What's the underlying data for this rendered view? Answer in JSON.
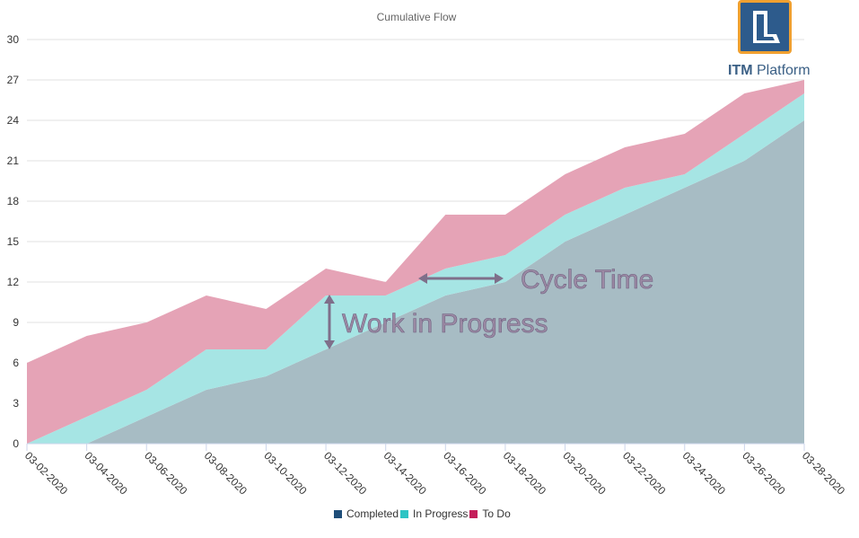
{
  "chart_data": {
    "type": "area",
    "title": "Cumulative Flow",
    "stacked": true,
    "x": [
      "03-02-2020",
      "03-04-2020",
      "03-06-2020",
      "03-08-2020",
      "03-10-2020",
      "03-12-2020",
      "03-14-2020",
      "03-16-2020",
      "03-18-2020",
      "03-20-2020",
      "03-22-2020",
      "03-24-2020",
      "03-26-2020",
      "03-28-2020"
    ],
    "ylim": [
      0,
      30
    ],
    "yticks": [
      0,
      3,
      6,
      9,
      12,
      15,
      18,
      21,
      24,
      27,
      30
    ],
    "grid": true,
    "legend_position": "bottom",
    "series": [
      {
        "name": "Completed",
        "legend_color": "#1f4e79",
        "fill": "#a7bcc4",
        "values": [
          0,
          0,
          2,
          4,
          5,
          7,
          9,
          11,
          12,
          15,
          17,
          19,
          21,
          24
        ]
      },
      {
        "name": "In Progress",
        "legend_color": "#2ec4c4",
        "fill": "#a6e5e4",
        "values": [
          0,
          2,
          2,
          3,
          2,
          4,
          2,
          2,
          2,
          2,
          2,
          1,
          2,
          2
        ]
      },
      {
        "name": "To Do",
        "legend_color": "#c41e5a",
        "fill": "#e5a3b6",
        "values": [
          6,
          6,
          5,
          4,
          3,
          2,
          1,
          4,
          3,
          3,
          3,
          3,
          3,
          1
        ]
      }
    ],
    "annotations": [
      {
        "text": "Cycle Time",
        "color": "#8a7a96"
      },
      {
        "text": "Work in Progress",
        "color": "#8a7a96"
      }
    ]
  },
  "logo": {
    "text_main": "ITM",
    "text_sub": "Platform",
    "icon": "itm-platform-logo-icon",
    "border_color": "#f0a030",
    "fill_color": "#2d5b8c"
  },
  "legend": {
    "items": [
      {
        "label": "Completed",
        "color": "#1f4e79"
      },
      {
        "label": "In Progress",
        "color": "#2ec4c4"
      },
      {
        "label": "To Do",
        "color": "#c41e5a"
      }
    ]
  }
}
